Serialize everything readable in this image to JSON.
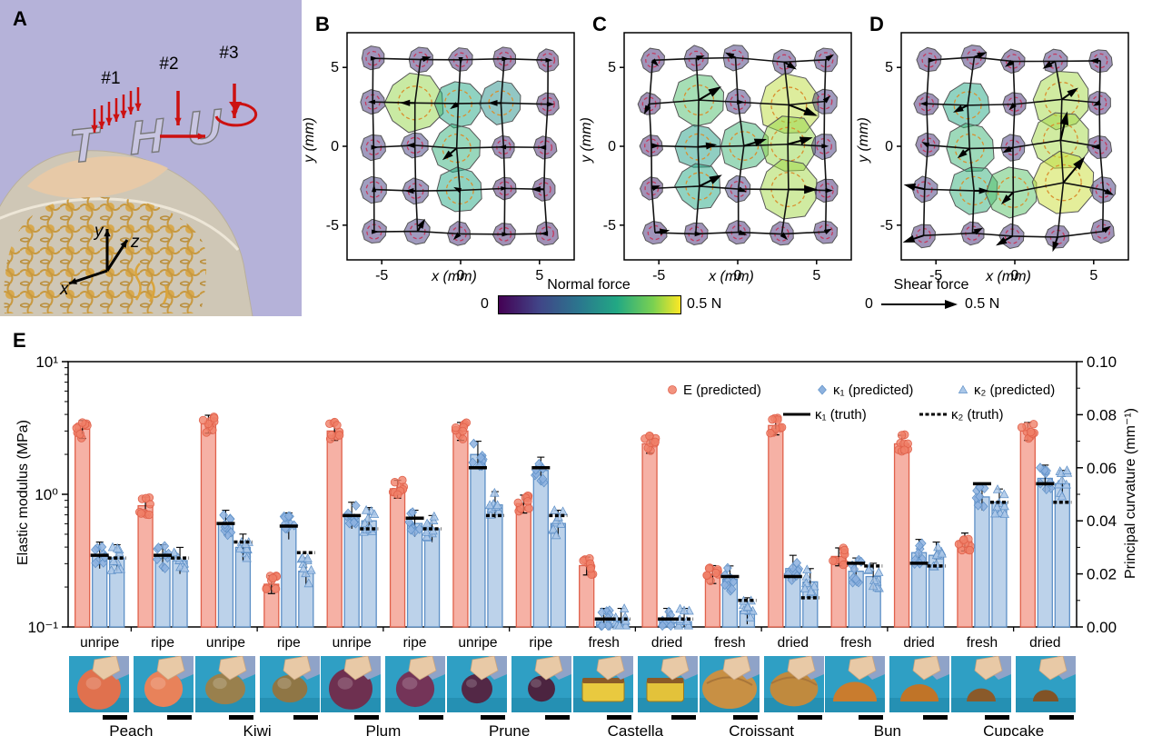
{
  "figure_title": "Tactile sensing figure",
  "panel_a": {
    "label": "A",
    "bg_color": "#b5b2d9",
    "force_case_labels": [
      "#1",
      "#2",
      "#3"
    ],
    "letter_shapes": [
      "T",
      "H",
      "U"
    ],
    "axis_triad": {
      "x": "x",
      "y": "y",
      "z": "z"
    },
    "arrow_color": "#cc1111"
  },
  "force_maps": {
    "xlabel": "x (mm)",
    "ylabel": "y (mm)",
    "xticks": [
      "-5",
      "0",
      "5"
    ],
    "yticks": [
      "-5",
      "0",
      "5"
    ],
    "taxel_positions_mm": [
      -5.5,
      -2.75,
      0,
      2.75,
      5.5
    ],
    "panels": [
      {
        "label": "B",
        "normal_force_N": [
          [
            0.06,
            0.07,
            0.06,
            0.05,
            0.05
          ],
          [
            0.07,
            0.42,
            0.3,
            0.25,
            0.05
          ],
          [
            0.08,
            0.09,
            0.32,
            0.06,
            0.05
          ],
          [
            0.09,
            0.08,
            0.3,
            0.05,
            0.05
          ],
          [
            0.07,
            0.08,
            0.06,
            0.05,
            0.05
          ]
        ],
        "shear_force_N": [
          [
            [
              0.01,
              0
            ],
            [
              0.04,
              0.01
            ],
            [
              0,
              -0.01
            ],
            [
              0.01,
              0
            ],
            [
              0.01,
              0
            ]
          ],
          [
            [
              -0.01,
              0
            ],
            [
              -0.06,
              0
            ],
            [
              -0.03,
              -0.02
            ],
            [
              -0.05,
              0
            ],
            [
              0.02,
              0
            ]
          ],
          [
            [
              0.01,
              0
            ],
            [
              -0.03,
              0
            ],
            [
              -0.06,
              -0.05
            ],
            [
              -0.01,
              0
            ],
            [
              -0.02,
              0
            ]
          ],
          [
            [
              0,
              0.01
            ],
            [
              -0.04,
              0
            ],
            [
              -0.02,
              0.01
            ],
            [
              0,
              0
            ],
            [
              -0.05,
              0
            ]
          ],
          [
            [
              0.01,
              0
            ],
            [
              0.03,
              0.05
            ],
            [
              -0.02,
              -0.02
            ],
            [
              0.01,
              0
            ],
            [
              -0.02,
              0
            ]
          ]
        ]
      },
      {
        "label": "C",
        "normal_force_N": [
          [
            0.06,
            0.07,
            0.08,
            0.07,
            0.07
          ],
          [
            0.05,
            0.35,
            0.08,
            0.45,
            0.08
          ],
          [
            0.05,
            0.28,
            0.33,
            0.42,
            0.08
          ],
          [
            0.05,
            0.3,
            0.09,
            0.43,
            0.06
          ],
          [
            0.06,
            0.06,
            0.06,
            0.06,
            0.06
          ]
        ],
        "shear_force_N": [
          [
            [
              0.02,
              -0.02
            ],
            [
              0.03,
              0.01
            ],
            [
              -0.04,
              0.02
            ],
            [
              0.05,
              -0.03
            ],
            [
              0.03,
              0.02
            ]
          ],
          [
            [
              -0.02,
              -0.04
            ],
            [
              0.1,
              0.06
            ],
            [
              0.02,
              0
            ],
            [
              0.13,
              -0.05
            ],
            [
              0.02,
              0.02
            ]
          ],
          [
            [
              0.03,
              0
            ],
            [
              0.08,
              0.01
            ],
            [
              0.1,
              0.03
            ],
            [
              0.11,
              0.03
            ],
            [
              0.01,
              0
            ]
          ],
          [
            [
              0.03,
              0.01
            ],
            [
              0.1,
              0.05
            ],
            [
              0.03,
              -0.01
            ],
            [
              0.13,
              0
            ],
            [
              0.02,
              0
            ]
          ],
          [
            [
              0.06,
              0.01
            ],
            [
              0.02,
              0
            ],
            [
              0.03,
              -0.01
            ],
            [
              0.02,
              -0.02
            ],
            [
              0.02,
              0.01
            ]
          ]
        ]
      },
      {
        "label": "D",
        "normal_force_N": [
          [
            0.06,
            0.07,
            0.06,
            0.07,
            0.06
          ],
          [
            0.06,
            0.3,
            0.06,
            0.43,
            0.06
          ],
          [
            0.06,
            0.33,
            0.08,
            0.43,
            0.06
          ],
          [
            0.08,
            0.32,
            0.36,
            0.46,
            0.08
          ],
          [
            0.06,
            0.06,
            0.07,
            0.06,
            0.06
          ]
        ],
        "shear_force_N": [
          [
            [
              0.02,
              0
            ],
            [
              0.05,
              0.02
            ],
            [
              -0.03,
              -0.02
            ],
            [
              -0.05,
              -0.03
            ],
            [
              -0.04,
              0
            ]
          ],
          [
            [
              -0.02,
              0
            ],
            [
              -0.06,
              -0.03
            ],
            [
              -0.02,
              -0.02
            ],
            [
              0.07,
              0.05
            ],
            [
              -0.02,
              -0.01
            ]
          ],
          [
            [
              -0.02,
              0.01
            ],
            [
              -0.05,
              -0.04
            ],
            [
              -0.04,
              -0.02
            ],
            [
              0.03,
              0.13
            ],
            [
              -0.03,
              0
            ]
          ],
          [
            [
              -0.09,
              0.02
            ],
            [
              0.06,
              0
            ],
            [
              -0.05,
              -0.05
            ],
            [
              0.1,
              0.12
            ],
            [
              0.04,
              -0.02
            ]
          ],
          [
            [
              -0.09,
              -0.03
            ],
            [
              0.04,
              0.02
            ],
            [
              -0.07,
              -0.04
            ],
            [
              -0.02,
              -0.06
            ],
            [
              0.03,
              0.02
            ]
          ]
        ]
      }
    ]
  },
  "colorbar": {
    "title": "Normal force",
    "min_label": "0",
    "max_label": "0.5 N",
    "cmap_stops": [
      "#440154",
      "#414487",
      "#2a788e",
      "#22a884",
      "#7ad151",
      "#fde725"
    ]
  },
  "shear_legend": {
    "title": "Shear force",
    "min_label": "0",
    "max_label": "0.5 N"
  },
  "panel_e_label": "E",
  "chart_data": {
    "type": "bar",
    "title": "",
    "left_axis": {
      "label": "Elastic modulus (MPa)",
      "scale": "log",
      "range": [
        0.1,
        10
      ],
      "ticks": [
        "10⁻¹",
        "10⁰",
        "10¹"
      ],
      "tick_values": [
        0.1,
        1,
        10
      ]
    },
    "right_axis": {
      "label": "Principal curvature (mm⁻¹)",
      "scale": "linear",
      "range": [
        0,
        0.1
      ],
      "ticks": [
        "0.00",
        "0.02",
        "0.04",
        "0.06",
        "0.08",
        "0.10"
      ],
      "tick_values": [
        0,
        0.02,
        0.04,
        0.06,
        0.08,
        0.1
      ]
    },
    "legend": [
      {
        "label": "E (predicted)",
        "marker": "circle"
      },
      {
        "label": "κ₁ (predicted)",
        "marker": "diamond"
      },
      {
        "label": "κ₂ (predicted)",
        "marker": "triangle"
      },
      {
        "label": "κ₁ (truth)",
        "marker": "solid-line"
      },
      {
        "label": "κ₂ (truth)",
        "marker": "dashed-line"
      }
    ],
    "series_units": {
      "E": "MPa",
      "k1": "mm⁻¹",
      "k2": "mm⁻¹"
    },
    "groups": [
      {
        "food": "Peach",
        "condition": "unripe",
        "E": 3.1,
        "k1": 0.027,
        "k2": 0.026,
        "k1_truth": 0.027,
        "k2_truth": 0.026
      },
      {
        "food": "Peach",
        "condition": "ripe",
        "E": 0.82,
        "k1": 0.026,
        "k2": 0.025,
        "k1_truth": 0.027,
        "k2_truth": 0.026
      },
      {
        "food": "Kiwi",
        "condition": "unripe",
        "E": 3.4,
        "k1": 0.039,
        "k2": 0.03,
        "k1_truth": 0.039,
        "k2_truth": 0.032
      },
      {
        "food": "Kiwi",
        "condition": "ripe",
        "E": 0.21,
        "k1": 0.038,
        "k2": 0.021,
        "k1_truth": 0.038,
        "k2_truth": 0.028
      },
      {
        "food": "Plum",
        "condition": "unripe",
        "E": 3.0,
        "k1": 0.042,
        "k2": 0.04,
        "k1_truth": 0.042,
        "k2_truth": 0.037
      },
      {
        "food": "Plum",
        "condition": "ripe",
        "E": 1.1,
        "k1": 0.039,
        "k2": 0.037,
        "k1_truth": 0.041,
        "k2_truth": 0.037
      },
      {
        "food": "Prune",
        "condition": "unripe",
        "E": 3.0,
        "k1": 0.065,
        "k2": 0.046,
        "k1_truth": 0.06,
        "k2_truth": 0.042
      },
      {
        "food": "Prune",
        "condition": "ripe",
        "E": 0.85,
        "k1": 0.059,
        "k2": 0.039,
        "k1_truth": 0.06,
        "k2_truth": 0.042
      },
      {
        "food": "Castella",
        "condition": "fresh",
        "E": 0.29,
        "k1": 0.002,
        "k2": 0.002,
        "k1_truth": 0.003,
        "k2_truth": 0.003
      },
      {
        "food": "Castella",
        "condition": "dried",
        "E": 2.4,
        "k1": 0.002,
        "k2": 0.002,
        "k1_truth": 0.003,
        "k2_truth": 0.003
      },
      {
        "food": "Croissant",
        "condition": "fresh",
        "E": 0.25,
        "k1": 0.018,
        "k2": 0.006,
        "k1_truth": 0.019,
        "k2_truth": 0.01
      },
      {
        "food": "Croissant",
        "condition": "dried",
        "E": 3.3,
        "k1": 0.022,
        "k2": 0.017,
        "k1_truth": 0.019,
        "k2_truth": 0.011
      },
      {
        "food": "Bun",
        "condition": "fresh",
        "E": 0.34,
        "k1": 0.021,
        "k2": 0.019,
        "k1_truth": 0.024,
        "k2_truth": 0.023
      },
      {
        "food": "Bun",
        "condition": "dried",
        "E": 2.4,
        "k1": 0.028,
        "k2": 0.027,
        "k1_truth": 0.024,
        "k2_truth": 0.023
      },
      {
        "food": "Cupcake",
        "condition": "fresh",
        "E": 0.44,
        "k1": 0.049,
        "k2": 0.047,
        "k1_truth": 0.054,
        "k2_truth": 0.047
      },
      {
        "food": "Cupcake",
        "condition": "dried",
        "E": 3.0,
        "k1": 0.056,
        "k2": 0.054,
        "k1_truth": 0.054,
        "k2_truth": 0.047
      }
    ],
    "colors": {
      "E_bar_fill": "#f6b1a5",
      "E_bar_edge": "#e0614b",
      "E_marker": "#f08068",
      "k_bar_fill": "#bcd2ea",
      "k_bar_edge": "#5d8fc6",
      "k1_marker": "#8db2df",
      "k2_marker": "#aac7e8",
      "truth_line": "#000000"
    }
  },
  "photos": {
    "foods": [
      {
        "name": "Peach",
        "conditions": [
          "unripe",
          "ripe"
        ],
        "object_color": "#e0714e",
        "object_color2": "#e8825a",
        "shape": "round-large"
      },
      {
        "name": "Kiwi",
        "conditions": [
          "unripe",
          "ripe"
        ],
        "object_color": "#99804d",
        "object_color2": "#8f7645",
        "shape": "oval"
      },
      {
        "name": "Plum",
        "conditions": [
          "unripe",
          "ripe"
        ],
        "object_color": "#6e3050",
        "object_color2": "#743458",
        "shape": "round-large"
      },
      {
        "name": "Prune",
        "conditions": [
          "unripe",
          "ripe"
        ],
        "object_color": "#532846",
        "object_color2": "#4c2440",
        "shape": "round-small"
      },
      {
        "name": "Castella",
        "conditions": [
          "fresh",
          "dried"
        ],
        "object_color": "#e9c93f",
        "object_color2": "#e3c23a",
        "shape": "block"
      },
      {
        "name": "Croissant",
        "conditions": [
          "fresh",
          "dried"
        ],
        "object_color": "#c89044",
        "object_color2": "#c08a3e",
        "shape": "blob-large"
      },
      {
        "name": "Bun",
        "conditions": [
          "fresh",
          "dried"
        ],
        "object_color": "#c97c2e",
        "object_color2": "#c07428",
        "shape": "dome"
      },
      {
        "name": "Cupcake",
        "conditions": [
          "fresh",
          "dried"
        ],
        "object_color": "#8a5a2a",
        "object_color2": "#815326",
        "shape": "dome-small"
      }
    ],
    "background_color": "#2f9fc4"
  }
}
